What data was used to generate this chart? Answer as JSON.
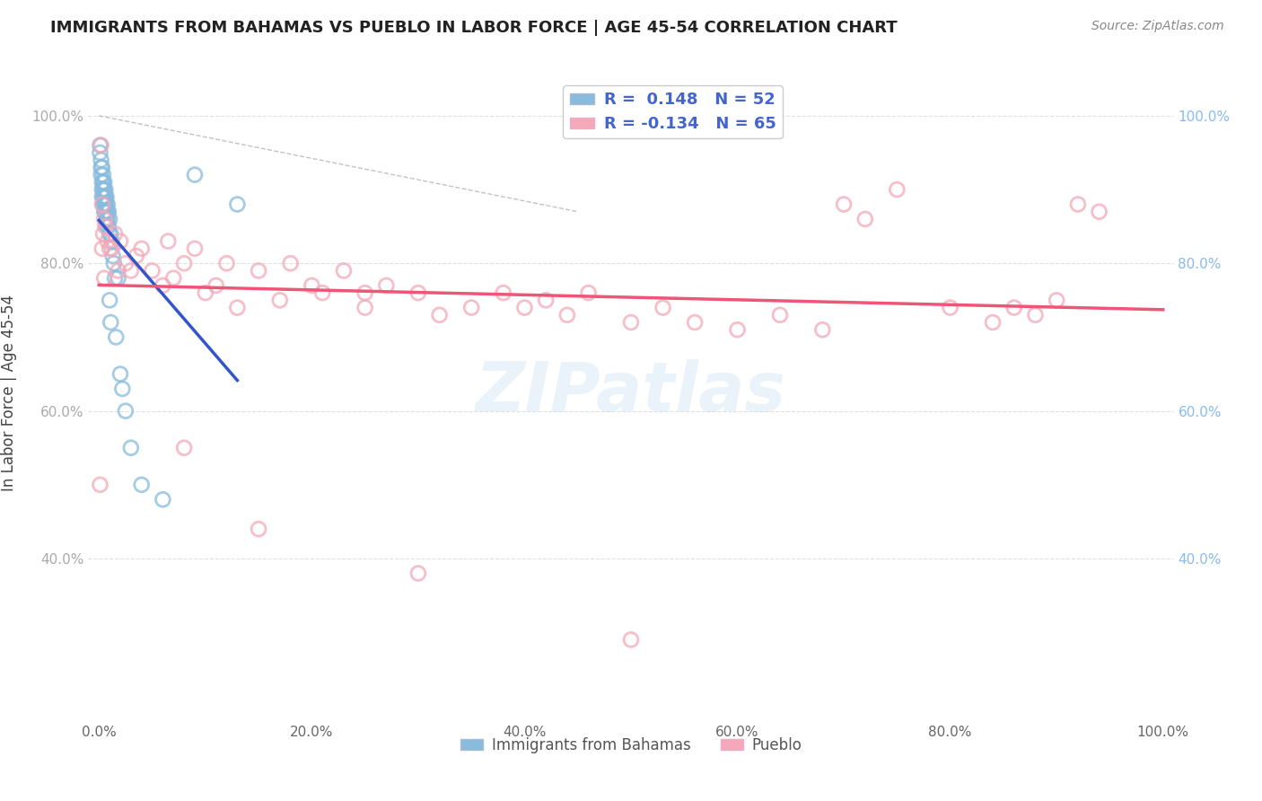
{
  "title": "IMMIGRANTS FROM BAHAMAS VS PUEBLO IN LABOR FORCE | AGE 45-54 CORRELATION CHART",
  "source": "Source: ZipAtlas.com",
  "ylabel": "In Labor Force | Age 45-54",
  "r_blue": 0.148,
  "n_blue": 52,
  "r_pink": -0.134,
  "n_pink": 65,
  "blue_color": "#88bbdd",
  "pink_color": "#f4a8b8",
  "blue_line_color": "#3355cc",
  "pink_line_color": "#ee5577",
  "watermark_text": "ZIPatlas",
  "blue_scatter_x": [
    0.001,
    0.001,
    0.002,
    0.002,
    0.002,
    0.003,
    0.003,
    0.003,
    0.003,
    0.004,
    0.004,
    0.004,
    0.004,
    0.004,
    0.005,
    0.005,
    0.005,
    0.005,
    0.005,
    0.006,
    0.006,
    0.006,
    0.006,
    0.007,
    0.007,
    0.007,
    0.007,
    0.007,
    0.008,
    0.008,
    0.008,
    0.009,
    0.009,
    0.01,
    0.01,
    0.01,
    0.011,
    0.011,
    0.012,
    0.013,
    0.014,
    0.015,
    0.016,
    0.018,
    0.02,
    0.022,
    0.025,
    0.03,
    0.04,
    0.06,
    0.09,
    0.13
  ],
  "blue_scatter_y": [
    0.96,
    0.95,
    0.94,
    0.93,
    0.92,
    0.93,
    0.91,
    0.9,
    0.89,
    0.92,
    0.91,
    0.9,
    0.89,
    0.88,
    0.91,
    0.9,
    0.89,
    0.88,
    0.87,
    0.9,
    0.89,
    0.88,
    0.87,
    0.89,
    0.88,
    0.87,
    0.86,
    0.85,
    0.88,
    0.87,
    0.86,
    0.87,
    0.85,
    0.86,
    0.84,
    0.75,
    0.84,
    0.72,
    0.83,
    0.81,
    0.8,
    0.78,
    0.7,
    0.78,
    0.65,
    0.63,
    0.6,
    0.55,
    0.5,
    0.48,
    0.92,
    0.88
  ],
  "pink_scatter_x": [
    0.001,
    0.002,
    0.003,
    0.003,
    0.004,
    0.005,
    0.005,
    0.006,
    0.008,
    0.01,
    0.012,
    0.015,
    0.018,
    0.02,
    0.025,
    0.03,
    0.035,
    0.04,
    0.05,
    0.06,
    0.065,
    0.07,
    0.08,
    0.09,
    0.1,
    0.11,
    0.12,
    0.13,
    0.15,
    0.17,
    0.18,
    0.2,
    0.21,
    0.23,
    0.25,
    0.27,
    0.3,
    0.32,
    0.35,
    0.38,
    0.4,
    0.42,
    0.44,
    0.46,
    0.5,
    0.53,
    0.56,
    0.6,
    0.64,
    0.68,
    0.7,
    0.72,
    0.75,
    0.8,
    0.84,
    0.86,
    0.88,
    0.9,
    0.92,
    0.94,
    0.08,
    0.15,
    0.3,
    0.5,
    0.25
  ],
  "pink_scatter_y": [
    0.5,
    0.96,
    0.88,
    0.82,
    0.84,
    0.86,
    0.78,
    0.85,
    0.83,
    0.82,
    0.82,
    0.84,
    0.79,
    0.83,
    0.8,
    0.79,
    0.81,
    0.82,
    0.79,
    0.77,
    0.83,
    0.78,
    0.8,
    0.82,
    0.76,
    0.77,
    0.8,
    0.74,
    0.79,
    0.75,
    0.8,
    0.77,
    0.76,
    0.79,
    0.74,
    0.77,
    0.76,
    0.73,
    0.74,
    0.76,
    0.74,
    0.75,
    0.73,
    0.76,
    0.72,
    0.74,
    0.72,
    0.71,
    0.73,
    0.71,
    0.88,
    0.86,
    0.9,
    0.74,
    0.72,
    0.74,
    0.73,
    0.75,
    0.88,
    0.87,
    0.55,
    0.44,
    0.38,
    0.29,
    0.76
  ],
  "yticks": [
    0.4,
    0.6,
    0.8,
    1.0
  ],
  "ytick_labels": [
    "40.0%",
    "60.0%",
    "80.0%",
    "100.0%"
  ],
  "xticks": [
    0.0,
    0.2,
    0.4,
    0.6,
    0.8,
    1.0
  ],
  "xtick_labels": [
    "0.0%",
    "20.0%",
    "40.0%",
    "60.0%",
    "80.0%",
    "100.0%"
  ],
  "grid_color": "#e0e0e0",
  "background_color": "#ffffff"
}
